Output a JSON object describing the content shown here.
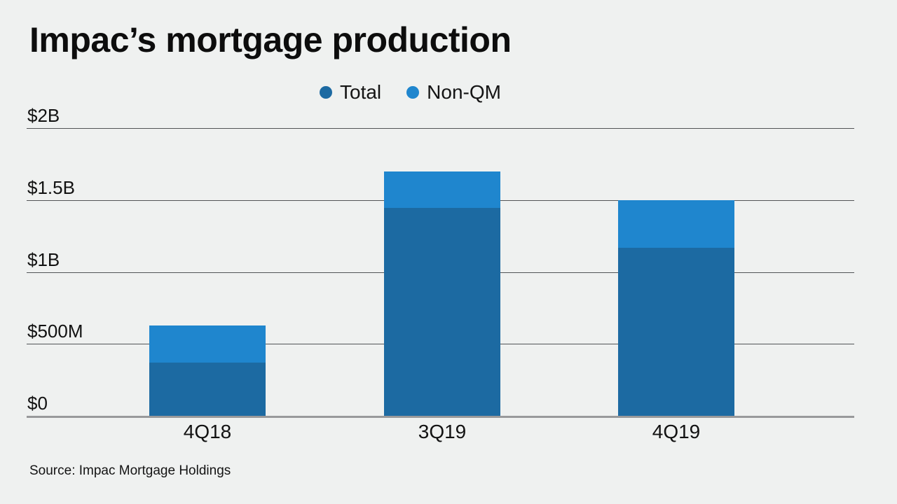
{
  "title": "Impac’s mortgage production",
  "source": "Source: Impac Mortgage Holdings",
  "legend": [
    {
      "label": "Total",
      "color": "#1c6aa2"
    },
    {
      "label": "Non-QM",
      "color": "#1f86ce"
    }
  ],
  "colors": {
    "background": "#eff1f0",
    "text": "#121212",
    "gridline": "#515456",
    "baseline": "#98999b",
    "total_bar": "#1c6aa2",
    "non_qm_bar": "#1f86ce"
  },
  "chart_data": {
    "type": "bar",
    "subtype": "overlay-stacked",
    "title": "Impac’s mortgage production",
    "unit": "USD millions",
    "categories": [
      "4Q18",
      "3Q19",
      "4Q19"
    ],
    "series": [
      {
        "name": "Total",
        "color": "#1c6aa2",
        "values": [
          630,
          1700,
          1500
        ]
      },
      {
        "name": "Non-QM",
        "color": "#1f86ce",
        "values": [
          260,
          255,
          330
        ]
      }
    ],
    "note": "Full bar height = Total; light segment drawn at top of bar = Non-QM portion",
    "xlabel": "",
    "ylabel": "",
    "ylim": [
      0,
      2000
    ],
    "yticks": [
      {
        "value": 2000,
        "label": "$2B"
      },
      {
        "value": 1500,
        "label": "$1.5B"
      },
      {
        "value": 1000,
        "label": "$1B"
      },
      {
        "value": 500,
        "label": "$500M"
      },
      {
        "value": 0,
        "label": "$0"
      }
    ],
    "grid": true,
    "legend_position": "top-center"
  }
}
